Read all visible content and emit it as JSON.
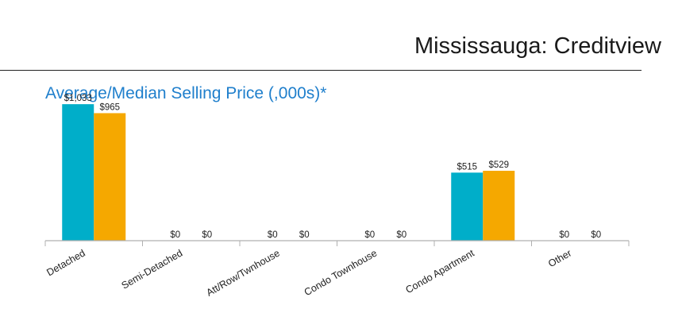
{
  "page": {
    "title": "Mississauga: Creditview"
  },
  "chart_data": {
    "type": "bar",
    "title": "Average/Median Selling Price (,000s)*",
    "categories": [
      "Detached",
      "Semi-Detached",
      "Att/Row/Twnhouse",
      "Condo Townhouse",
      "Condo Apartment",
      "Other"
    ],
    "series": [
      {
        "values": [
          1033,
          0,
          0,
          0,
          515,
          0
        ],
        "labels": [
          "$1,033",
          "$0",
          "$0",
          "$0",
          "$515",
          "$0"
        ],
        "color": "#00aec9"
      },
      {
        "values": [
          965,
          0,
          0,
          0,
          529,
          0
        ],
        "labels": [
          "$965",
          "$0",
          "$0",
          "$0",
          "$529",
          "$0"
        ],
        "color": "#f5a800"
      }
    ],
    "ylim": [
      0,
      1100
    ],
    "grid": false,
    "legend": "none"
  }
}
